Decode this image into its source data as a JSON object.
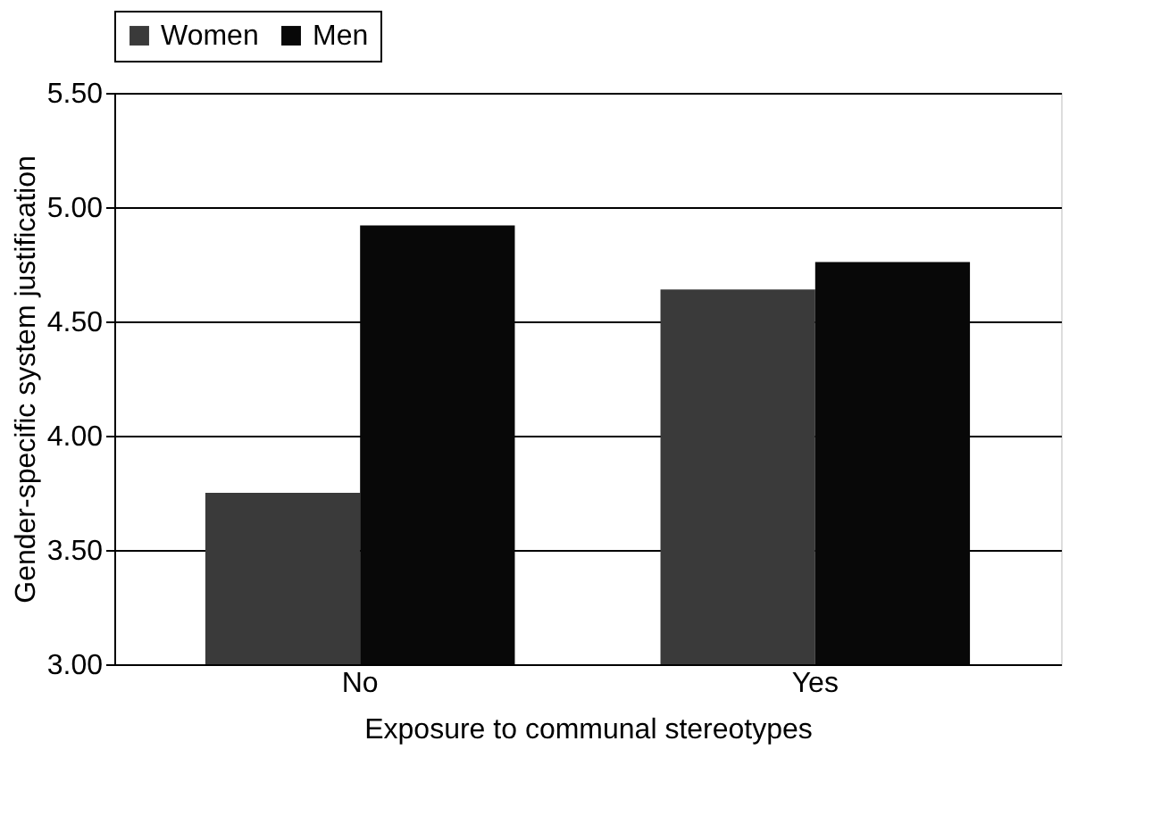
{
  "chart_data": {
    "type": "bar",
    "xlabel": "Exposure to communal stereotypes",
    "ylabel": "Gender-specific system justification",
    "categories": [
      "No",
      "Yes"
    ],
    "series": [
      {
        "name": "Women",
        "color": "#3a3a3a",
        "values": [
          3.75,
          4.64
        ]
      },
      {
        "name": "Men",
        "color": "#080808",
        "values": [
          4.92,
          4.76
        ]
      }
    ],
    "ylim": [
      3,
      5.5
    ],
    "yticks": [
      {
        "value": 3,
        "label": "3.00"
      },
      {
        "value": 3.5,
        "label": "3.50"
      },
      {
        "value": 4,
        "label": "4.00"
      },
      {
        "value": 4.5,
        "label": "4.50"
      },
      {
        "value": 5,
        "label": "5.00"
      },
      {
        "value": 5.5,
        "label": "5.50"
      }
    ],
    "grid": "y",
    "legend": "top"
  }
}
